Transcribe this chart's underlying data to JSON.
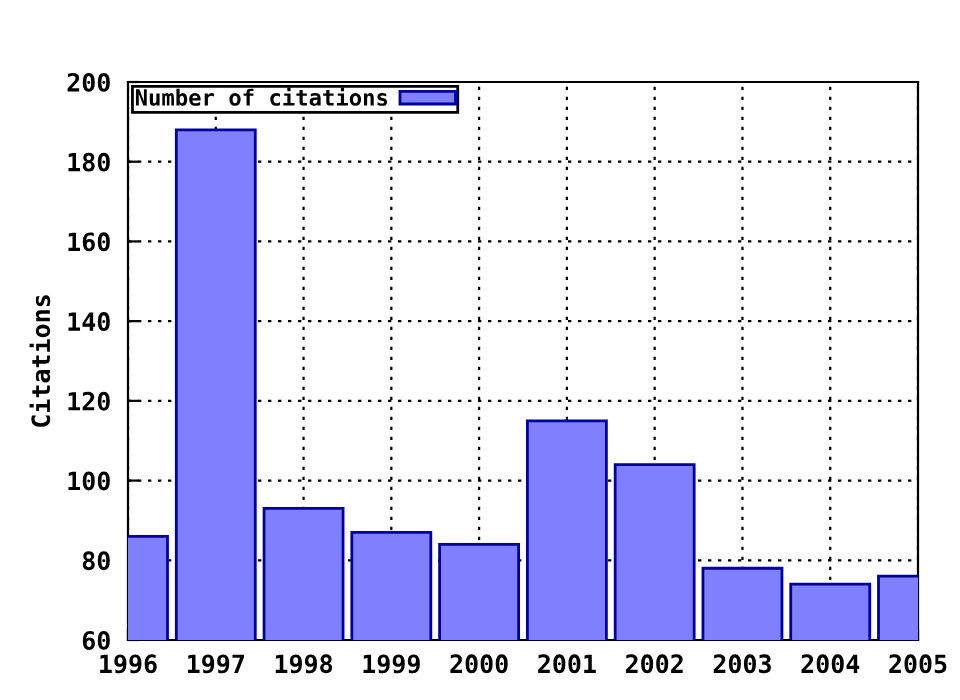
{
  "chart_data": {
    "type": "bar",
    "ylabel": "Citations",
    "x": [
      1996,
      1997,
      1998,
      1999,
      2000,
      2001,
      2002,
      2003,
      2004,
      2005
    ],
    "series": [
      {
        "name": "Number of citations",
        "color": "#8080ff",
        "values": [
          86,
          188,
          93,
          87,
          84,
          115,
          104,
          78,
          74,
          76
        ]
      }
    ],
    "xlim": [
      1996,
      2005
    ],
    "xticks": [
      1996,
      1997,
      1998,
      1999,
      2000,
      2001,
      2002,
      2003,
      2004,
      2005
    ],
    "ylim": [
      60,
      200
    ],
    "yticks": [
      60,
      80,
      100,
      120,
      140,
      160,
      180,
      200
    ],
    "grid": true,
    "legend": "top left"
  }
}
